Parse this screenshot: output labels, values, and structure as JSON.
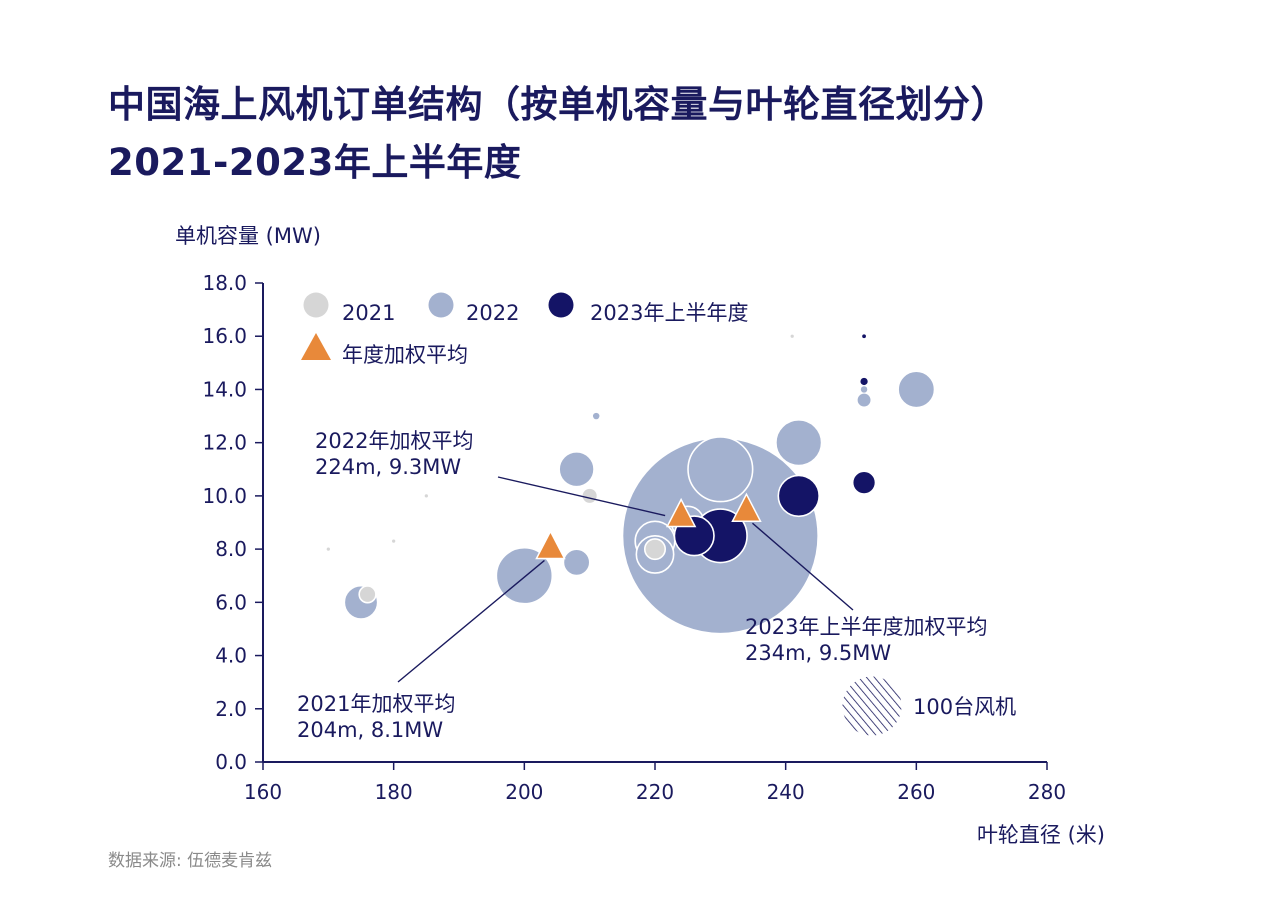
{
  "title": {
    "line1": "中国海上风机订单结构（按单机容量与叶轮直径划分）",
    "line2": "2021-2023年上半年度"
  },
  "source": "数据来源: 伍德麦肯兹",
  "colors": {
    "text": "#1a1a5e",
    "axis": "#1a1a5e",
    "y2021": "#d6d6d6",
    "y2022": "#a3b1cf",
    "y2023": "#141466",
    "avg": "#e8893a"
  },
  "chart_data": {
    "type": "scatter",
    "ylabel": "单机容量 (MW)",
    "xlabel": "叶轮直径 (米)",
    "xlim": [
      160,
      280
    ],
    "ylim": [
      0,
      18
    ],
    "x_ticks": [
      "160",
      "180",
      "200",
      "220",
      "240",
      "260",
      "280"
    ],
    "y_ticks": [
      "0.0",
      "2.0",
      "4.0",
      "6.0",
      "8.0",
      "10.0",
      "12.0",
      "14.0",
      "16.0",
      "18.0"
    ],
    "legend": {
      "placement": "top-left",
      "items": [
        {
          "key": "y2021",
          "label": "2021",
          "marker": "circle"
        },
        {
          "key": "y2022",
          "label": "2022",
          "marker": "circle"
        },
        {
          "key": "y2023",
          "label": "2023年上半年度",
          "marker": "circle"
        },
        {
          "key": "avg",
          "label": "年度加权平均",
          "marker": "triangle"
        }
      ]
    },
    "size_legend": {
      "label": "100台风机",
      "turbines": 100
    },
    "series": [
      {
        "name": "2022",
        "key": "y2022",
        "points": [
          {
            "x": 230,
            "y": 8.5,
            "turbines": 1100
          },
          {
            "x": 230,
            "y": 11.0,
            "turbines": 120
          },
          {
            "x": 200,
            "y": 7.0,
            "turbines": 90
          },
          {
            "x": 242,
            "y": 12.0,
            "turbines": 60
          },
          {
            "x": 220,
            "y": 8.3,
            "turbines": 45
          },
          {
            "x": 220,
            "y": 7.8,
            "turbines": 40
          },
          {
            "x": 208,
            "y": 11.0,
            "turbines": 35
          },
          {
            "x": 260,
            "y": 14.0,
            "turbines": 38
          },
          {
            "x": 175,
            "y": 6.0,
            "turbines": 32
          },
          {
            "x": 225,
            "y": 9.0,
            "turbines": 30
          },
          {
            "x": 208,
            "y": 7.5,
            "turbines": 20
          },
          {
            "x": 230,
            "y": 9.0,
            "turbines": 18
          },
          {
            "x": 252,
            "y": 13.6,
            "turbines": 6
          },
          {
            "x": 211,
            "y": 13.0,
            "turbines": 1.2
          },
          {
            "x": 252,
            "y": 14.0,
            "turbines": 1.2
          }
        ]
      },
      {
        "name": "2021",
        "key": "y2021",
        "points": [
          {
            "x": 220,
            "y": 8.0,
            "turbines": 12
          },
          {
            "x": 210,
            "y": 10.0,
            "turbines": 7
          },
          {
            "x": 176,
            "y": 6.3,
            "turbines": 8
          },
          {
            "x": 185,
            "y": 10.0,
            "turbines": 0.3
          },
          {
            "x": 241,
            "y": 16.0,
            "turbines": 0.3
          },
          {
            "x": 170,
            "y": 8.0,
            "turbines": 0.3
          },
          {
            "x": 180,
            "y": 8.3,
            "turbines": 0.3
          }
        ]
      },
      {
        "name": "2023年上半年度",
        "key": "y2023",
        "points": [
          {
            "x": 230,
            "y": 8.5,
            "turbines": 82
          },
          {
            "x": 226,
            "y": 8.5,
            "turbines": 45
          },
          {
            "x": 242,
            "y": 10.0,
            "turbines": 48
          },
          {
            "x": 252,
            "y": 10.5,
            "turbines": 15
          },
          {
            "x": 252,
            "y": 14.3,
            "turbines": 1.5
          },
          {
            "x": 252,
            "y": 16.0,
            "turbines": 0.4
          }
        ]
      },
      {
        "name": "年度加权平均",
        "key": "avg",
        "points": [
          {
            "x": 204,
            "y": 8.1,
            "year": "2021"
          },
          {
            "x": 224,
            "y": 9.3,
            "year": "2022"
          },
          {
            "x": 234,
            "y": 9.5,
            "year": "2023"
          }
        ]
      }
    ],
    "annotations": [
      {
        "line1": "2022年加权平均",
        "line2": "224m, 9.3MW"
      },
      {
        "line1": "2021年加权平均",
        "line2": "204m, 8.1MW"
      },
      {
        "line1": "2023年上半年度加权平均",
        "line2": "234m, 9.5MW"
      }
    ]
  }
}
